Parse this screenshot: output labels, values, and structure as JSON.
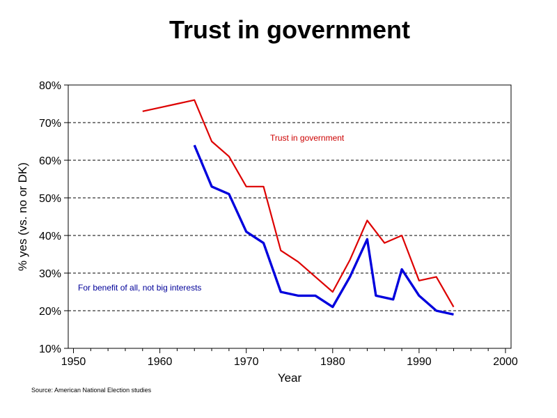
{
  "chart_data": {
    "type": "line",
    "title": "Trust in government",
    "xlabel": "Year",
    "ylabel": "% yes (vs. no or DK)",
    "xlim": [
      1950,
      2000
    ],
    "ylim": [
      10,
      80
    ],
    "x_ticks": [
      "1950",
      "1960",
      "1970",
      "1980",
      "1990",
      "2000"
    ],
    "y_ticks": [
      "10%",
      "20%",
      "30%",
      "40%",
      "50%",
      "60%",
      "70%",
      "80%"
    ],
    "grid": "horizontal dashed",
    "series": [
      {
        "name": "Trust in government",
        "color": "#dd0000",
        "x": [
          1958,
          1960,
          1962,
          1963,
          1964,
          1966,
          1968,
          1970,
          1972,
          1974,
          1976,
          1978,
          1980,
          1982,
          1984,
          1986,
          1988,
          1990,
          1992,
          1994
        ],
        "y": [
          73,
          74,
          75,
          75.5,
          76,
          65,
          61,
          53,
          53,
          36,
          33,
          29,
          25,
          33.5,
          44,
          38,
          40,
          28,
          29,
          21
        ]
      },
      {
        "name": "For benefit of all, not big interests",
        "color": "#0000dd",
        "x": [
          1964,
          1966,
          1968,
          1970,
          1972,
          1974,
          1976,
          1978,
          1980,
          1982,
          1984,
          1985,
          1987,
          1988,
          1990,
          1992,
          1994
        ],
        "y": [
          64,
          53,
          51,
          41,
          38,
          25,
          24,
          24,
          21,
          29,
          39,
          24,
          23,
          31,
          24,
          20,
          19
        ]
      }
    ],
    "annotations": [
      {
        "text": "Trust in government",
        "color": "#cc0000"
      },
      {
        "text": "For benefit of all, not big interests",
        "color": "#000099"
      }
    ],
    "source": "Source: American National Election studies"
  }
}
